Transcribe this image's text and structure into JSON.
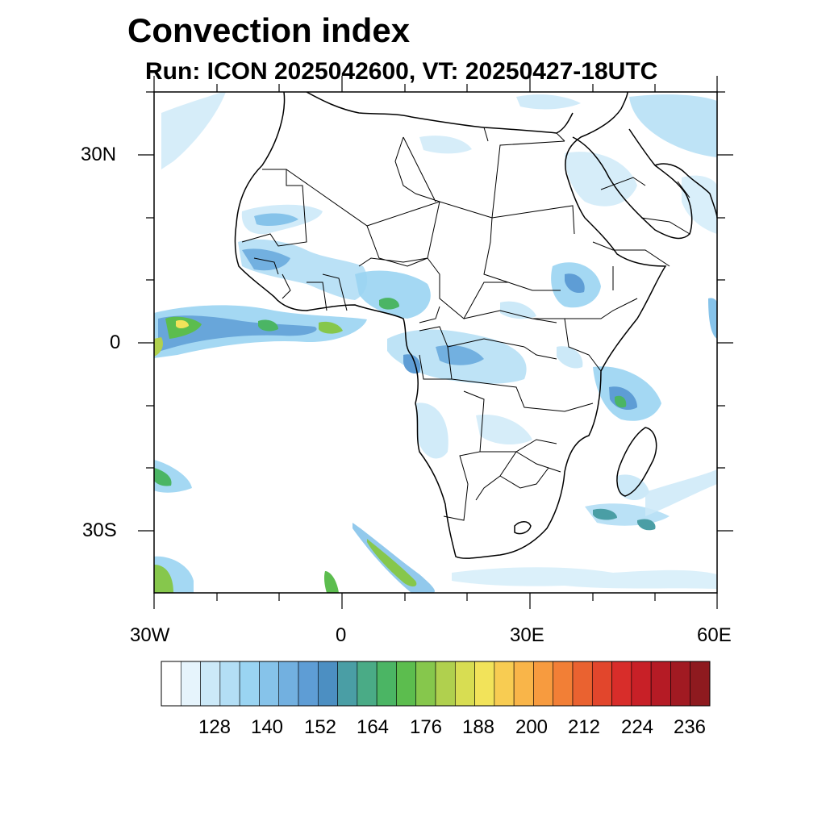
{
  "header": {
    "title": "Convection index",
    "subtitle": "Run: ICON 2025042600,  VT: 20250427-18UTC"
  },
  "axes": {
    "lat_labels": [
      "30N",
      "0",
      "30S"
    ],
    "lon_labels": [
      "30W",
      "0",
      "30E",
      "60E"
    ],
    "lon_range": [
      -30,
      60
    ],
    "lat_range": [
      -40,
      40
    ]
  },
  "colorbar": {
    "labels": [
      "128",
      "140",
      "152",
      "164",
      "176",
      "188",
      "200",
      "212",
      "224",
      "236"
    ],
    "colors": [
      "#ffffff",
      "#e6f4fc",
      "#cce9f8",
      "#b3def5",
      "#9ad4f2",
      "#86c3ea",
      "#72b0e0",
      "#5e9dd5",
      "#4c8fc2",
      "#4a9ea5",
      "#4aab86",
      "#4bb564",
      "#5cbd4e",
      "#86c74c",
      "#b0d04e",
      "#d8dd52",
      "#f2e35a",
      "#f8cc52",
      "#f9b549",
      "#f79b3f",
      "#f27f36",
      "#ea6230",
      "#e2462c",
      "#d82d2a",
      "#c82027",
      "#b51b25",
      "#a11a22",
      "#8e1a1f"
    ]
  },
  "convection_areas": [
    {
      "region": "equatorial-atlantic-band",
      "intensity": "high"
    },
    {
      "region": "west-africa-coast",
      "intensity": "medium"
    },
    {
      "region": "sahel-band",
      "intensity": "low"
    },
    {
      "region": "central-africa-basin",
      "intensity": "medium"
    },
    {
      "region": "ethiopian-highlands",
      "intensity": "medium"
    },
    {
      "region": "east-africa-coast",
      "intensity": "medium"
    },
    {
      "region": "madagascar",
      "intensity": "low"
    },
    {
      "region": "south-atlantic-streak",
      "intensity": "high"
    },
    {
      "region": "southwest-corner",
      "intensity": "high"
    },
    {
      "region": "arabian-peninsula",
      "intensity": "low"
    },
    {
      "region": "indian-ocean-south",
      "intensity": "medium"
    }
  ]
}
